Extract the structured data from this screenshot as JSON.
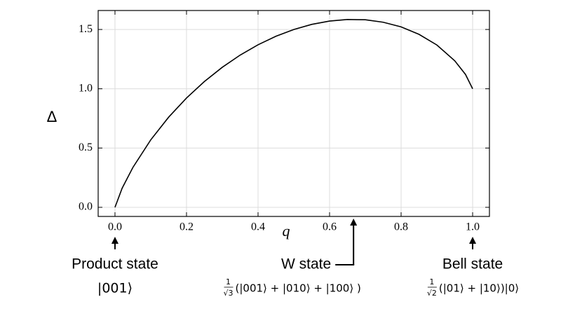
{
  "chart_data": {
    "type": "line",
    "xlabel": "q",
    "ylabel": "Δ",
    "xlim": [
      -0.047,
      1.047
    ],
    "ylim": [
      -0.077,
      1.66
    ],
    "xticks": [
      {
        "value": 0,
        "label": "0.0"
      },
      0.2,
      0.4,
      0.6,
      0.8,
      {
        "value": 1,
        "label": "1.0"
      }
    ],
    "yticks": [
      {
        "value": 0,
        "label": "0.0"
      },
      0.5,
      {
        "value": 1,
        "label": "1.0"
      },
      1.5
    ],
    "grid": true,
    "series": [
      {
        "color": "#000000",
        "x": [
          0,
          0.02,
          0.05,
          0.1,
          0.15,
          0.2,
          0.25,
          0.3,
          0.35,
          0.4,
          0.45,
          0.5,
          0.55,
          0.6,
          0.65,
          0.7,
          0.75,
          0.8,
          0.85,
          0.9,
          0.95,
          0.98,
          1
        ],
        "values": [
          0,
          0.161,
          0.336,
          0.569,
          0.76,
          0.922,
          1.061,
          1.181,
          1.284,
          1.371,
          1.443,
          1.5,
          1.543,
          1.571,
          1.584,
          1.582,
          1.561,
          1.522,
          1.459,
          1.369,
          1.236,
          1.121,
          1
        ]
      }
    ],
    "annotations": [
      {
        "x": 0,
        "label": "Product state",
        "state": "|001⟩"
      },
      {
        "x": 0.667,
        "label": "W state",
        "num": "1",
        "den": "√3",
        "state": "(|001⟩ + |010⟩ + |100⟩ )"
      },
      {
        "x": 1,
        "label": "Bell state",
        "num": "1",
        "den": "√2",
        "state": "(|01⟩ + |10⟩)|0⟩"
      }
    ]
  }
}
